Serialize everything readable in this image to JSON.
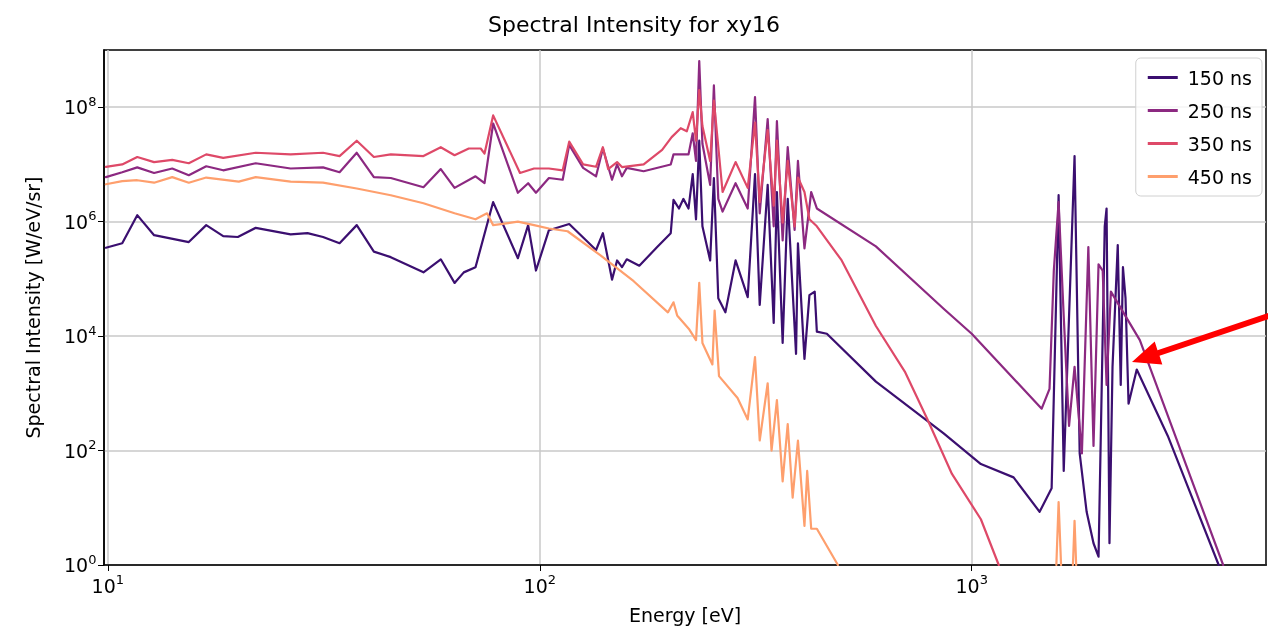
{
  "chart_data": {
    "type": "line",
    "title": "Spectral Intensity for xy16",
    "xlabel": "Energy [eV]",
    "ylabel": "Spectral Intensity [W/eV/sr]",
    "log": "xy",
    "grid": true,
    "legend": "top right",
    "line_style": "solid",
    "xlim": [
      9.8,
      4800
    ],
    "ylim": [
      1,
      1000000000
    ],
    "xticks": [
      {
        "value": 10,
        "label": "10$^{1}$"
      },
      {
        "value": 100,
        "label": "10$^{2}$"
      },
      {
        "value": 1000,
        "label": "10$^{3}$"
      }
    ],
    "yticks": [
      {
        "value": 1,
        "label": "10$^{0}$"
      },
      {
        "value": 100,
        "label": "10$^{2}$"
      },
      {
        "value": 10000,
        "label": "10$^{4}$"
      },
      {
        "value": 1000000,
        "label": "10$^{6}$"
      },
      {
        "value": 100000000,
        "label": "10$^{8}$"
      }
    ],
    "series": [
      {
        "name": "150 ns",
        "color": "#3b0f70",
        "x": [
          9.9,
          10.8,
          11.7,
          12.8,
          15.4,
          16.9,
          18.5,
          20,
          22,
          26.5,
          29,
          31.5,
          34.4,
          37.7,
          41.3,
          45.2,
          53.8,
          59,
          63.5,
          66.7,
          71,
          78,
          89,
          94,
          98,
          105,
          117,
          135,
          140,
          147,
          151,
          155,
          159,
          170,
          187,
          201,
          204,
          210,
          215,
          221,
          226,
          230,
          234,
          238,
          248,
          253,
          259,
          269,
          284,
          303,
          315,
          323,
          337,
          348,
          354,
          365,
          375,
          392,
          396,
          410,
          421,
          433,
          438,
          462,
          600,
          861,
          1050,
          1250,
          1436,
          1531,
          1589,
          1633,
          1730,
          1778,
          1845,
          1914,
          1966,
          2032,
          2052,
          2084,
          2118,
          2178,
          2213,
          2239,
          2270,
          2307,
          2410,
          2844,
          3730
        ],
        "values": [
          350000,
          420000,
          1300000,
          580000,
          440000,
          870000,
          560000,
          540000,
          780000,
          600000,
          630000,
          540000,
          420000,
          870000,
          300000,
          240000,
          130000,
          220000,
          85000,
          130000,
          160000,
          2200000,
          230000,
          870000,
          140000,
          710000,
          910000,
          320000,
          630000,
          97000,
          210000,
          160000,
          220000,
          170000,
          360000,
          630000,
          2400000,
          1700000,
          2500000,
          1700000,
          6800000,
          1100000,
          26000000,
          830000,
          210000,
          5800000,
          46000,
          26000,
          210000,
          48000,
          6800000,
          35000,
          4400000,
          17000,
          3300000,
          7600,
          2500000,
          4900,
          420000,
          4000,
          52000,
          60000,
          12000,
          11000,
          1600,
          200,
          58,
          34,
          8.5,
          22,
          2900000,
          44,
          14000000,
          89,
          8.5,
          2.4,
          1.4,
          830000,
          1700000,
          2.4,
          2900,
          390000,
          1400,
          160000,
          46000,
          660,
          2600,
          180,
          1
        ]
      },
      {
        "name": "250 ns",
        "color": "#8c2981",
        "x": [
          9.9,
          10.8,
          11.7,
          12.8,
          14.1,
          15.4,
          16.9,
          18.5,
          22,
          26.5,
          31.5,
          34.4,
          37.7,
          41.3,
          45.2,
          53.8,
          59,
          63.5,
          71,
          74.5,
          78,
          89,
          94,
          98,
          105,
          113,
          117,
          126,
          135,
          140,
          147,
          151,
          155,
          159,
          174,
          201,
          204,
          221,
          226,
          230,
          234,
          238,
          248,
          253,
          259,
          265,
          284,
          303,
          315,
          323,
          337,
          348,
          354,
          365,
          375,
          389,
          396,
          410,
          425,
          438,
          600,
          861,
          1000,
          1452,
          1514,
          1549,
          1589,
          1633,
          1680,
          1730,
          1799,
          1862,
          1914,
          1966,
          2010,
          2052,
          2100,
          2450,
          3820
        ],
        "values": [
          6000000,
          7300000,
          8900000,
          7100000,
          8500000,
          6500000,
          9300000,
          7900000,
          10500000,
          8500000,
          8900000,
          7300000,
          16000000,
          6000000,
          5800000,
          4000000,
          8300000,
          3900000,
          6200000,
          4700000,
          52000000,
          3200000,
          4700000,
          3200000,
          5800000,
          5400000,
          22000000,
          8700000,
          6200000,
          19000000,
          5400000,
          10000000,
          6200000,
          8700000,
          7600000,
          10000000,
          15000000,
          15000000,
          35000000,
          11500000,
          640000000,
          23000000,
          4400000,
          240000000,
          2500000,
          1500000,
          4700000,
          1700000,
          150000000,
          1400000,
          62000000,
          830000,
          57000000,
          470000,
          20000000,
          720000,
          11500000,
          340000,
          3300000,
          1700000,
          370000,
          30000,
          11000,
          540,
          1200,
          140000,
          2200000,
          22000,
          270,
          2900,
          89,
          360000,
          120,
          180000,
          140000,
          1400,
          60000,
          8500,
          1
        ]
      },
      {
        "name": "350 ns",
        "color": "#de4968",
        "x": [
          9.9,
          10.8,
          11.7,
          12.8,
          14.1,
          15.4,
          16.9,
          18.5,
          22,
          26.5,
          31.5,
          34.4,
          37.7,
          41.3,
          45.2,
          53.8,
          59,
          63.5,
          68.5,
          73,
          74.5,
          78,
          90,
          97,
          105,
          113,
          117,
          126,
          135,
          140,
          144,
          151,
          155,
          174,
          192,
          202,
          212,
          219,
          226,
          230,
          234,
          238,
          248,
          253,
          265,
          284,
          303,
          315,
          323,
          337,
          348,
          354,
          365,
          375,
          389,
          396,
          410,
          421,
          438,
          500,
          600,
          700,
          790,
          900,
          1050,
          1155
        ],
        "values": [
          9100000,
          10000000,
          13500000,
          11000000,
          12000000,
          10500000,
          15000000,
          13000000,
          16000000,
          15000000,
          16000000,
          14000000,
          26000000,
          13500000,
          15000000,
          14000000,
          20000000,
          14500000,
          19000000,
          19000000,
          15500000,
          72000000,
          7100000,
          8500000,
          8500000,
          7900000,
          25000000,
          10000000,
          9100000,
          20000000,
          8300000,
          11000000,
          9000000,
          10000000,
          18000000,
          30000000,
          43000000,
          38000000,
          82000000,
          26000000,
          200000000,
          47000000,
          11500000,
          130000000,
          3300000,
          11000000,
          3900000,
          54000000,
          2200000,
          40000000,
          1900000,
          26000000,
          960000,
          11500000,
          830000,
          5900000,
          3300000,
          1100000,
          830000,
          210000,
          15000,
          2400,
          350,
          39,
          6.3,
          1
        ]
      },
      {
        "name": "450 ns",
        "color": "#fe9f6d",
        "x": [
          9.9,
          10.8,
          11.7,
          12.8,
          14.1,
          15.4,
          16.9,
          20.1,
          22,
          26.5,
          31.5,
          37.7,
          45.2,
          53.8,
          63.5,
          71,
          75.5,
          78,
          89,
          97,
          105,
          116,
          138,
          165,
          198,
          204,
          208,
          222,
          230,
          234,
          238,
          251,
          254,
          260,
          287,
          303,
          315,
          323,
          337,
          344,
          354,
          365,
          375,
          385,
          396,
          410,
          416,
          425,
          438,
          490,
          1000,
          1570,
          1589,
          1610,
          1650,
          1715,
          1730,
          1745
        ],
        "values": [
          4500000,
          5100000,
          5300000,
          4800000,
          6000000,
          4800000,
          5900000,
          5000000,
          6000000,
          5000000,
          4800000,
          3800000,
          2900000,
          2100000,
          1400000,
          1100000,
          1400000,
          870000,
          1000000,
          870000,
          760000,
          680000,
          260000,
          91000,
          26000,
          39000,
          23000,
          13000,
          8500,
          85000,
          7600,
          3200,
          28000,
          2000,
          830,
          350,
          4300,
          150,
          1500,
          100,
          760,
          29,
          290,
          15,
          150,
          4.8,
          44,
          4.3,
          4.3,
          1,
          null,
          1,
          12.6,
          1,
          null,
          1,
          5.9,
          1
        ]
      }
    ]
  }
}
